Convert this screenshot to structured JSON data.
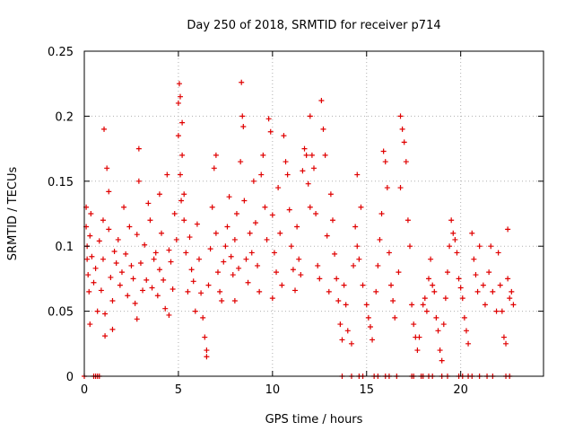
{
  "chart_data": {
    "type": "scatter",
    "title": "Day 250 of 2018, SRMTID for receiver p714",
    "xlabel": "GPS time / hours",
    "ylabel": "SRMTID / TECUs",
    "xlim": [
      0,
      24.4
    ],
    "ylim": [
      0,
      0.25
    ],
    "xticks": [
      0,
      5,
      10,
      15,
      20
    ],
    "xtick_labels": [
      "0",
      "5",
      "10",
      "15",
      "20"
    ],
    "yticks": [
      0,
      0.05,
      0.1,
      0.15,
      0.2,
      0.25
    ],
    "ytick_labels": [
      "0",
      "0.05",
      "0.1",
      "0.15",
      "0.2",
      "0.25"
    ],
    "grid": true,
    "marker": "+",
    "series": [
      {
        "name": "SRMTID",
        "color": "#e00000",
        "generated_note": "dense per-satellite scatter; values below are representative samples plus zero-value markers",
        "points": [
          [
            0.1,
            0.13
          ],
          [
            0.1,
            0.115
          ],
          [
            0.15,
            0.1
          ],
          [
            0.15,
            0.09
          ],
          [
            0.2,
            0.078
          ],
          [
            0.25,
            0.065
          ],
          [
            0.3,
            0.108
          ],
          [
            0.3,
            0.04
          ],
          [
            0.35,
            0.125
          ],
          [
            0.4,
            0.092
          ],
          [
            0.5,
            0.072
          ],
          [
            0.6,
            0.083
          ],
          [
            0.7,
            0.05
          ],
          [
            0.8,
            0.104
          ],
          [
            0.9,
            0.066
          ],
          [
            1.0,
            0.12
          ],
          [
            1.0,
            0.09
          ],
          [
            1.05,
            0.19
          ],
          [
            1.1,
            0.048
          ],
          [
            1.1,
            0.031
          ],
          [
            1.2,
            0.16
          ],
          [
            1.3,
            0.142
          ],
          [
            1.3,
            0.113
          ],
          [
            1.4,
            0.076
          ],
          [
            1.5,
            0.058
          ],
          [
            1.5,
            0.036
          ],
          [
            1.6,
            0.096
          ],
          [
            1.7,
            0.087
          ],
          [
            1.8,
            0.105
          ],
          [
            1.9,
            0.07
          ],
          [
            2.0,
            0.08
          ],
          [
            2.1,
            0.13
          ],
          [
            2.2,
            0.094
          ],
          [
            2.3,
            0.062
          ],
          [
            2.4,
            0.115
          ],
          [
            2.5,
            0.085
          ],
          [
            2.6,
            0.075
          ],
          [
            2.7,
            0.056
          ],
          [
            2.8,
            0.109
          ],
          [
            2.8,
            0.044
          ],
          [
            2.9,
            0.15
          ],
          [
            2.9,
            0.175
          ],
          [
            3.0,
            0.087
          ],
          [
            3.1,
            0.066
          ],
          [
            3.2,
            0.101
          ],
          [
            3.3,
            0.074
          ],
          [
            3.4,
            0.133
          ],
          [
            3.5,
            0.12
          ],
          [
            3.6,
            0.068
          ],
          [
            3.7,
            0.09
          ],
          [
            3.8,
            0.095
          ],
          [
            3.9,
            0.062
          ],
          [
            4.0,
            0.14
          ],
          [
            4.0,
            0.082
          ],
          [
            4.1,
            0.11
          ],
          [
            4.2,
            0.074
          ],
          [
            4.3,
            0.052
          ],
          [
            4.4,
            0.155
          ],
          [
            4.5,
            0.097
          ],
          [
            4.5,
            0.047
          ],
          [
            4.6,
            0.088
          ],
          [
            4.7,
            0.067
          ],
          [
            4.8,
            0.125
          ],
          [
            4.9,
            0.105
          ],
          [
            5.0,
            0.21
          ],
          [
            5.0,
            0.185
          ],
          [
            5.05,
            0.225
          ],
          [
            5.1,
            0.215
          ],
          [
            5.1,
            0.155
          ],
          [
            5.15,
            0.135
          ],
          [
            5.2,
            0.195
          ],
          [
            5.2,
            0.17
          ],
          [
            5.3,
            0.14
          ],
          [
            5.3,
            0.12
          ],
          [
            5.4,
            0.095
          ],
          [
            5.5,
            0.065
          ],
          [
            5.6,
            0.107
          ],
          [
            5.7,
            0.082
          ],
          [
            5.8,
            0.073
          ],
          [
            5.9,
            0.05
          ],
          [
            6.0,
            0.117
          ],
          [
            6.1,
            0.09
          ],
          [
            6.2,
            0.064
          ],
          [
            6.3,
            0.045
          ],
          [
            6.4,
            0.03
          ],
          [
            6.5,
            0.015
          ],
          [
            6.5,
            0.02
          ],
          [
            6.6,
            0.07
          ],
          [
            6.7,
            0.098
          ],
          [
            6.8,
            0.13
          ],
          [
            6.9,
            0.16
          ],
          [
            7.0,
            0.17
          ],
          [
            7.0,
            0.11
          ],
          [
            7.1,
            0.08
          ],
          [
            7.2,
            0.065
          ],
          [
            7.3,
            0.058
          ],
          [
            7.4,
            0.088
          ],
          [
            7.5,
            0.1
          ],
          [
            7.6,
            0.115
          ],
          [
            7.7,
            0.138
          ],
          [
            7.8,
            0.092
          ],
          [
            7.9,
            0.078
          ],
          [
            8.0,
            0.105
          ],
          [
            8.0,
            0.058
          ],
          [
            8.1,
            0.125
          ],
          [
            8.2,
            0.083
          ],
          [
            8.3,
            0.165
          ],
          [
            8.35,
            0.226
          ],
          [
            8.4,
            0.2
          ],
          [
            8.45,
            0.192
          ],
          [
            8.5,
            0.135
          ],
          [
            8.6,
            0.09
          ],
          [
            8.7,
            0.072
          ],
          [
            8.8,
            0.11
          ],
          [
            8.9,
            0.095
          ],
          [
            9.0,
            0.15
          ],
          [
            9.1,
            0.118
          ],
          [
            9.2,
            0.085
          ],
          [
            9.3,
            0.065
          ],
          [
            9.4,
            0.155
          ],
          [
            9.5,
            0.17
          ],
          [
            9.6,
            0.13
          ],
          [
            9.7,
            0.105
          ],
          [
            9.8,
            0.198
          ],
          [
            9.9,
            0.188
          ],
          [
            10.0,
            0.124
          ],
          [
            10.0,
            0.06
          ],
          [
            10.1,
            0.095
          ],
          [
            10.2,
            0.08
          ],
          [
            10.3,
            0.145
          ],
          [
            10.4,
            0.11
          ],
          [
            10.5,
            0.07
          ],
          [
            10.6,
            0.185
          ],
          [
            10.7,
            0.165
          ],
          [
            10.8,
            0.155
          ],
          [
            10.9,
            0.128
          ],
          [
            11.0,
            0.1
          ],
          [
            11.1,
            0.082
          ],
          [
            11.2,
            0.066
          ],
          [
            11.3,
            0.115
          ],
          [
            11.4,
            0.09
          ],
          [
            11.5,
            0.078
          ],
          [
            11.6,
            0.158
          ],
          [
            11.7,
            0.175
          ],
          [
            11.8,
            0.17
          ],
          [
            11.9,
            0.148
          ],
          [
            12.0,
            0.2
          ],
          [
            12.0,
            0.13
          ],
          [
            12.1,
            0.17
          ],
          [
            12.2,
            0.16
          ],
          [
            12.3,
            0.125
          ],
          [
            12.4,
            0.085
          ],
          [
            12.5,
            0.075
          ],
          [
            12.6,
            0.212
          ],
          [
            12.7,
            0.19
          ],
          [
            12.8,
            0.17
          ],
          [
            12.9,
            0.108
          ],
          [
            13.0,
            0.065
          ],
          [
            13.1,
            0.14
          ],
          [
            13.2,
            0.12
          ],
          [
            13.3,
            0.094
          ],
          [
            13.4,
            0.075
          ],
          [
            13.5,
            0.058
          ],
          [
            13.6,
            0.04
          ],
          [
            13.7,
            0.028
          ],
          [
            13.8,
            0.07
          ],
          [
            13.9,
            0.055
          ],
          [
            14.0,
            0.035
          ],
          [
            14.2,
            0.025
          ],
          [
            14.3,
            0.085
          ],
          [
            14.4,
            0.115
          ],
          [
            14.5,
            0.155
          ],
          [
            14.5,
            0.1
          ],
          [
            14.6,
            0.09
          ],
          [
            14.7,
            0.13
          ],
          [
            14.8,
            0.07
          ],
          [
            15.0,
            0.055
          ],
          [
            15.1,
            0.045
          ],
          [
            15.2,
            0.038
          ],
          [
            15.3,
            0.028
          ],
          [
            15.5,
            0.065
          ],
          [
            15.6,
            0.085
          ],
          [
            15.7,
            0.105
          ],
          [
            15.8,
            0.125
          ],
          [
            15.9,
            0.173
          ],
          [
            16.0,
            0.165
          ],
          [
            16.1,
            0.145
          ],
          [
            16.2,
            0.095
          ],
          [
            16.3,
            0.07
          ],
          [
            16.4,
            0.058
          ],
          [
            16.5,
            0.045
          ],
          [
            16.7,
            0.08
          ],
          [
            16.8,
            0.145
          ],
          [
            16.8,
            0.2
          ],
          [
            16.9,
            0.19
          ],
          [
            17.0,
            0.18
          ],
          [
            17.1,
            0.165
          ],
          [
            17.2,
            0.12
          ],
          [
            17.3,
            0.1
          ],
          [
            17.4,
            0.055
          ],
          [
            17.5,
            0.04
          ],
          [
            17.6,
            0.03
          ],
          [
            17.7,
            0.02
          ],
          [
            17.8,
            0.03
          ],
          [
            18.0,
            0.055
          ],
          [
            18.1,
            0.06
          ],
          [
            18.2,
            0.05
          ],
          [
            18.3,
            0.075
          ],
          [
            18.4,
            0.09
          ],
          [
            18.5,
            0.07
          ],
          [
            18.6,
            0.065
          ],
          [
            18.7,
            0.045
          ],
          [
            18.8,
            0.035
          ],
          [
            18.9,
            0.02
          ],
          [
            19.0,
            0.012
          ],
          [
            19.1,
            0.04
          ],
          [
            19.2,
            0.06
          ],
          [
            19.3,
            0.08
          ],
          [
            19.4,
            0.1
          ],
          [
            19.5,
            0.12
          ],
          [
            19.6,
            0.11
          ],
          [
            19.7,
            0.105
          ],
          [
            19.8,
            0.095
          ],
          [
            19.9,
            0.075
          ],
          [
            20.0,
            0.068
          ],
          [
            20.1,
            0.06
          ],
          [
            20.2,
            0.045
          ],
          [
            20.3,
            0.035
          ],
          [
            20.4,
            0.025
          ],
          [
            20.6,
            0.11
          ],
          [
            20.7,
            0.09
          ],
          [
            20.8,
            0.078
          ],
          [
            20.9,
            0.065
          ],
          [
            21.0,
            0.1
          ],
          [
            21.2,
            0.07
          ],
          [
            21.3,
            0.055
          ],
          [
            21.5,
            0.08
          ],
          [
            21.6,
            0.1
          ],
          [
            21.7,
            0.065
          ],
          [
            21.9,
            0.05
          ],
          [
            22.0,
            0.095
          ],
          [
            22.1,
            0.07
          ],
          [
            22.2,
            0.05
          ],
          [
            22.3,
            0.03
          ],
          [
            22.4,
            0.025
          ],
          [
            22.5,
            0.113
          ],
          [
            22.5,
            0.075
          ],
          [
            22.6,
            0.06
          ],
          [
            22.7,
            0.065
          ],
          [
            22.8,
            0.055
          ],
          [
            0.0,
            0
          ],
          [
            0.5,
            0
          ],
          [
            0.6,
            0
          ],
          [
            0.7,
            0
          ],
          [
            0.8,
            0
          ],
          [
            13.7,
            0
          ],
          [
            14.2,
            0
          ],
          [
            14.6,
            0
          ],
          [
            14.8,
            0
          ],
          [
            15.4,
            0
          ],
          [
            15.6,
            0
          ],
          [
            16.0,
            0
          ],
          [
            16.2,
            0
          ],
          [
            16.6,
            0
          ],
          [
            17.4,
            0
          ],
          [
            17.5,
            0
          ],
          [
            17.9,
            0
          ],
          [
            18.0,
            0
          ],
          [
            18.3,
            0
          ],
          [
            18.5,
            0
          ],
          [
            19.0,
            0
          ],
          [
            19.3,
            0
          ],
          [
            19.9,
            0
          ],
          [
            20.1,
            0
          ],
          [
            20.4,
            0
          ],
          [
            20.6,
            0
          ],
          [
            21.0,
            0
          ],
          [
            21.4,
            0
          ],
          [
            21.7,
            0
          ],
          [
            22.4,
            0
          ],
          [
            22.6,
            0
          ]
        ]
      }
    ]
  }
}
